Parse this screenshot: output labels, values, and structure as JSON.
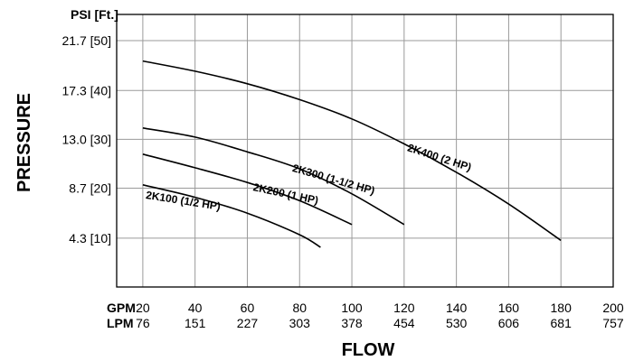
{
  "chart_data": {
    "type": "line",
    "title": "",
    "y_unit_label": "PSI [Ft.]",
    "ylabel": "PRESSURE",
    "xlabel": "FLOW",
    "x_unit_labels": [
      "GPM",
      "LPM"
    ],
    "xlim": [
      10,
      200
    ],
    "ylim": [
      0,
      24
    ],
    "x_ticks_gpm": [
      "20",
      "40",
      "60",
      "80",
      "100",
      "120",
      "140",
      "160",
      "180",
      "200"
    ],
    "x_ticks_lpm": [
      "76",
      "151",
      "227",
      "303",
      "378",
      "454",
      "530",
      "606",
      "681",
      "757"
    ],
    "y_ticks": [
      "4.3 [10]",
      "8.7 [20]",
      "13.0 [30]",
      "17.3 [40]",
      "21.7 [50]"
    ],
    "y_tick_values": [
      4.3,
      8.7,
      13.0,
      17.3,
      21.7
    ],
    "grid": true,
    "series": [
      {
        "name": "2K100 (1/2 HP)",
        "x": [
          20,
          40,
          60,
          80,
          88
        ],
        "y": [
          9.0,
          7.9,
          6.5,
          4.6,
          3.5
        ]
      },
      {
        "name": "2K200 (1 HP)",
        "x": [
          20,
          40,
          60,
          80,
          100
        ],
        "y": [
          11.7,
          10.5,
          9.2,
          7.6,
          5.5
        ]
      },
      {
        "name": "2K300 (1-1/2 HP)",
        "x": [
          20,
          40,
          60,
          80,
          100,
          120
        ],
        "y": [
          14.0,
          13.2,
          11.9,
          10.4,
          8.2,
          5.5
        ]
      },
      {
        "name": "2K400 (2 HP)",
        "x": [
          20,
          40,
          60,
          80,
          100,
          120,
          140,
          160,
          180
        ],
        "y": [
          19.9,
          19.0,
          17.9,
          16.5,
          14.8,
          12.6,
          10.1,
          7.3,
          4.1
        ]
      }
    ]
  }
}
